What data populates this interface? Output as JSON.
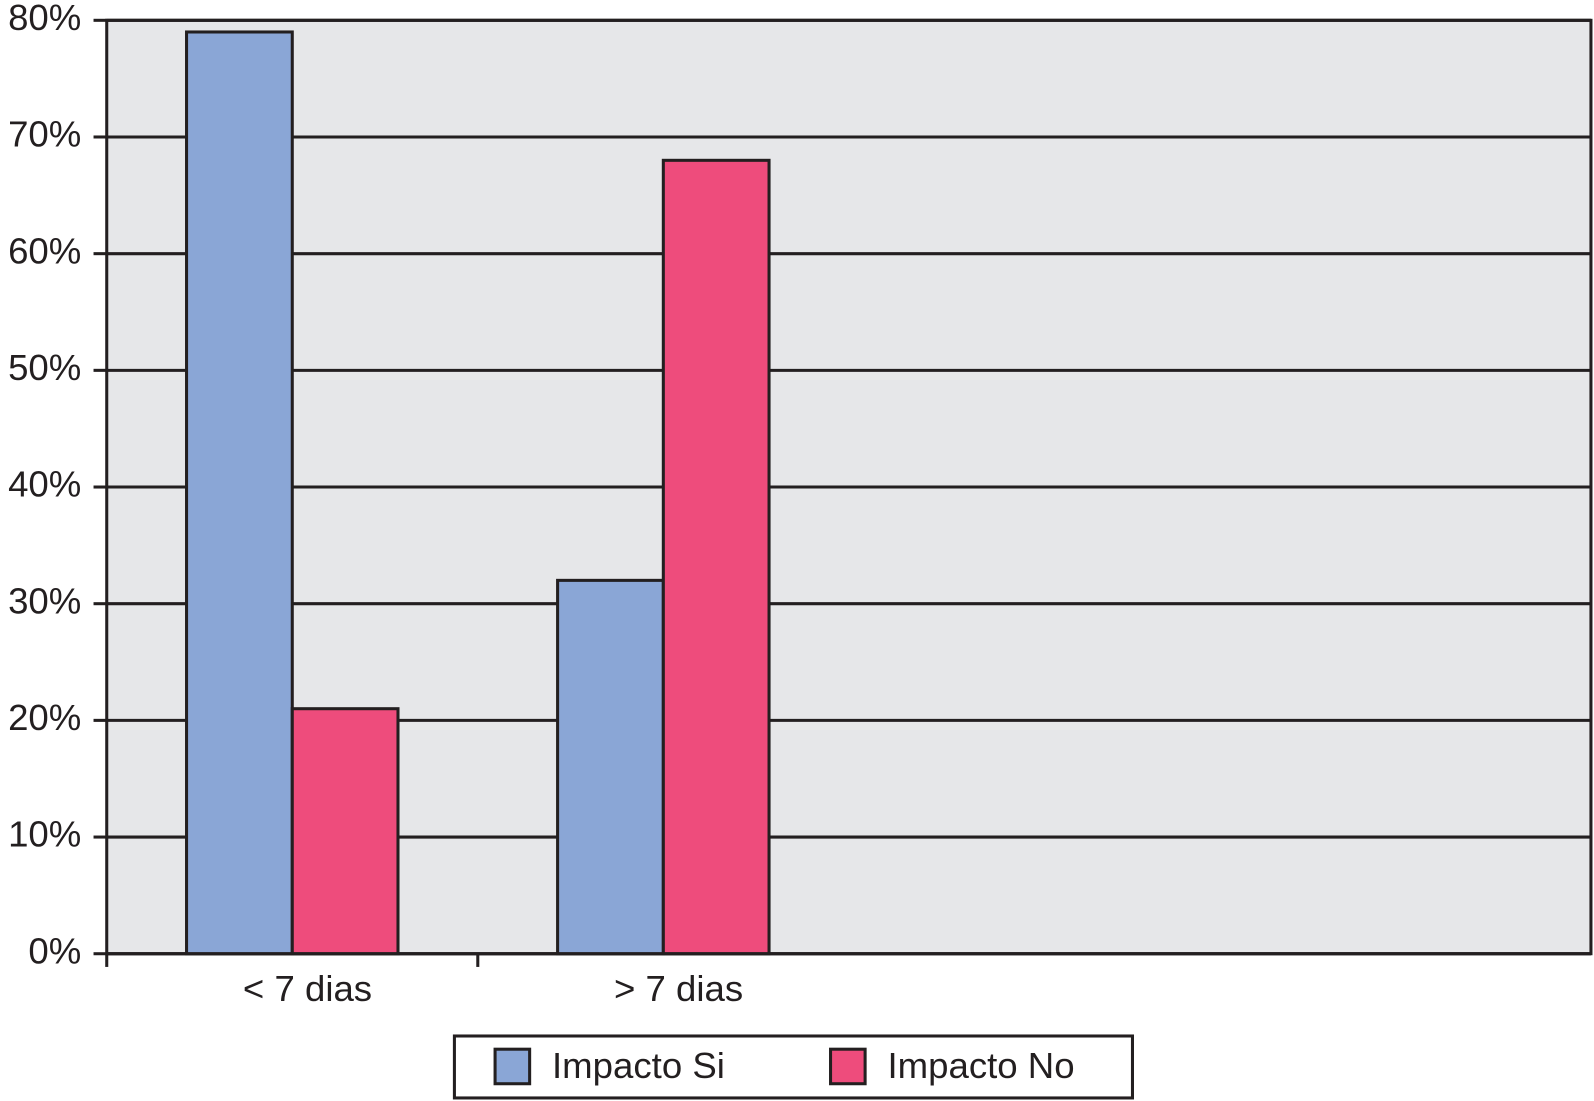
{
  "chart_data": {
    "type": "bar",
    "categories": [
      "< 7 dias",
      "> 7 dias",
      null,
      null
    ],
    "series": [
      {
        "name": "Impacto Si",
        "color": "#8aa6d6",
        "values": [
          79,
          32,
          null,
          null
        ]
      },
      {
        "name": "Impacto No",
        "color": "#ee4c7c",
        "values": [
          21,
          68,
          null,
          null
        ]
      }
    ],
    "ylim": [
      0,
      80
    ],
    "yticks": [
      {
        "value": 0,
        "label": "0%"
      },
      {
        "value": 10,
        "label": "10%"
      },
      {
        "value": 20,
        "label": "20%"
      },
      {
        "value": 30,
        "label": "30%"
      },
      {
        "value": 40,
        "label": "40%"
      },
      {
        "value": 50,
        "label": "50%"
      },
      {
        "value": 60,
        "label": "60%"
      },
      {
        "value": 70,
        "label": "70%"
      },
      {
        "value": 80,
        "label": "80%"
      }
    ],
    "grid": true,
    "legend": "bottom"
  }
}
